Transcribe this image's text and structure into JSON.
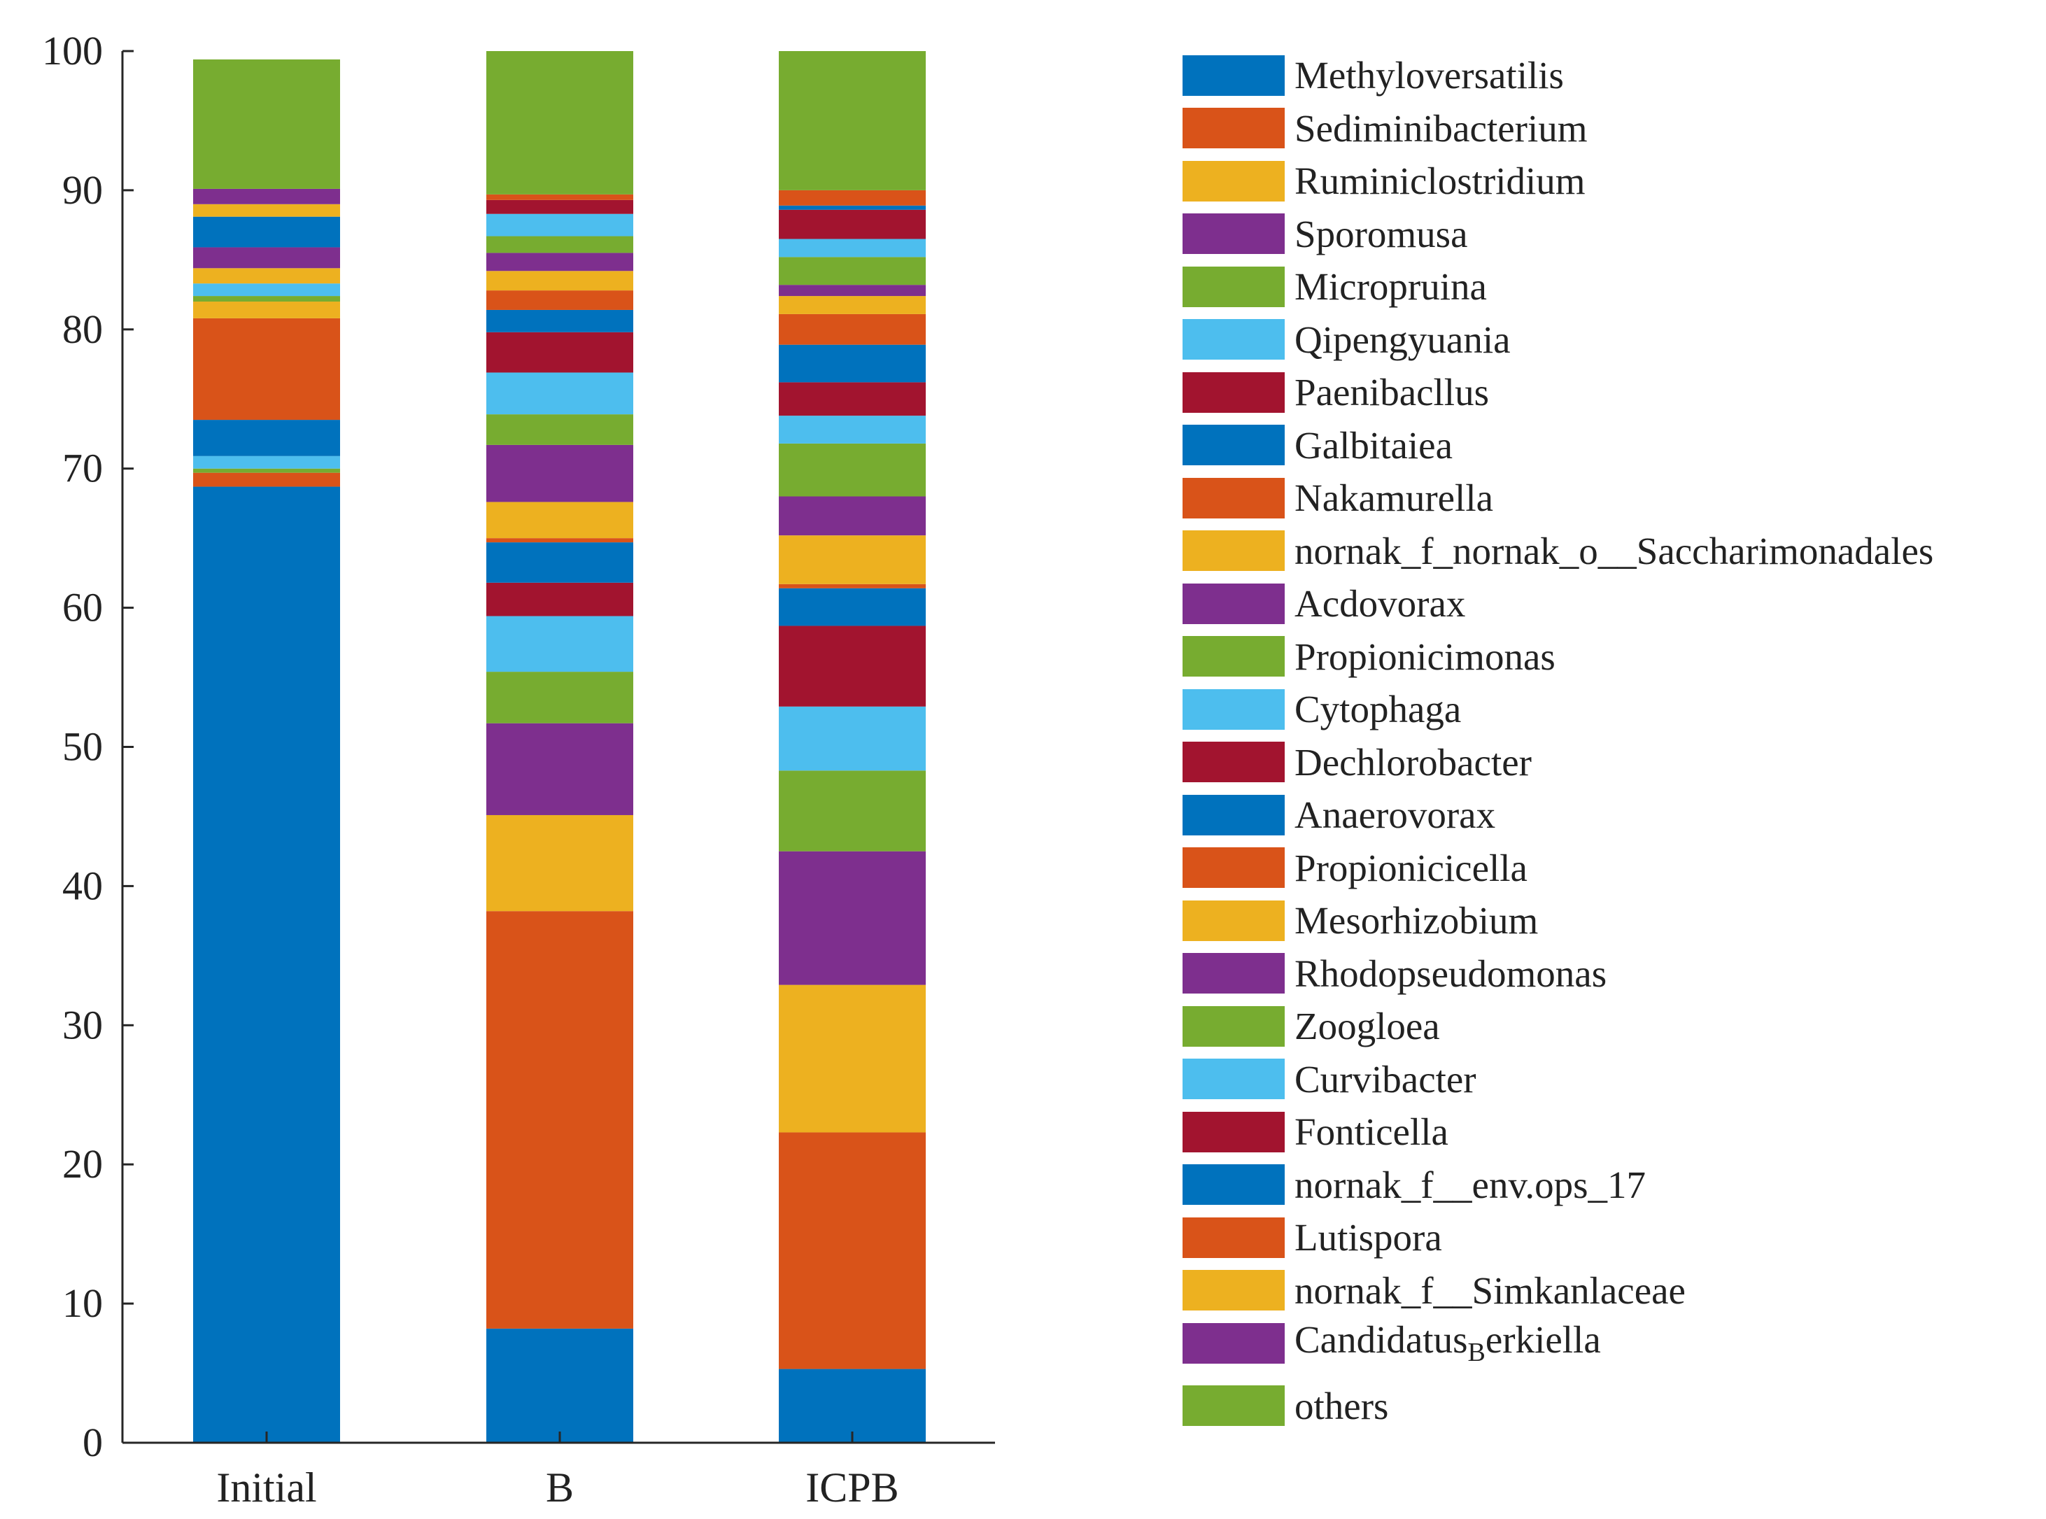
{
  "chart_data": {
    "type": "bar",
    "stacked": true,
    "title": "",
    "xlabel": "",
    "ylabel": "",
    "ylim": [
      0,
      100
    ],
    "yticks": [
      0,
      10,
      20,
      30,
      40,
      50,
      60,
      70,
      80,
      90,
      100
    ],
    "categories": [
      "Initial",
      "B",
      "ICPB"
    ],
    "legend_position": "right",
    "series": [
      {
        "name": "Methyloversatilis",
        "color": "#0072BD",
        "values": [
          68.7,
          8.2,
          5.3
        ]
      },
      {
        "name": "Sediminibacterium",
        "color": "#D95319",
        "values": [
          1.0,
          30.0,
          17.0
        ]
      },
      {
        "name": "Ruminiclostridium",
        "color": "#EDB120",
        "values": [
          0.0,
          6.9,
          10.6
        ]
      },
      {
        "name": "Sporomusa",
        "color": "#7E2F8E",
        "values": [
          0.0,
          6.6,
          9.6
        ]
      },
      {
        "name": "Micropruina",
        "color": "#77AC30",
        "values": [
          0.3,
          3.7,
          5.8
        ]
      },
      {
        "name": "Qipengyuania",
        "color": "#4DBEEE",
        "values": [
          0.9,
          4.0,
          4.6
        ]
      },
      {
        "name": "Paenibacllus",
        "color": "#A2142F",
        "values": [
          0.0,
          2.4,
          5.8
        ]
      },
      {
        "name": "Galbitaiea",
        "color": "#0072BD",
        "values": [
          2.6,
          2.9,
          2.7
        ]
      },
      {
        "name": "Nakamurella",
        "color": "#D95319",
        "values": [
          7.3,
          0.3,
          0.3
        ]
      },
      {
        "name": "nornak_f_nornak_o__Saccharimonadales",
        "color": "#EDB120",
        "values": [
          1.2,
          2.6,
          3.5
        ]
      },
      {
        "name": "Acdovorax",
        "color": "#7E2F8E",
        "values": [
          0.0,
          4.1,
          2.8
        ]
      },
      {
        "name": "Propionicimonas",
        "color": "#77AC30",
        "values": [
          0.4,
          2.2,
          3.8
        ]
      },
      {
        "name": "Cytophaga",
        "color": "#4DBEEE",
        "values": [
          0.9,
          3.0,
          2.0
        ]
      },
      {
        "name": "Dechlorobacter",
        "color": "#A2142F",
        "values": [
          0.0,
          2.9,
          2.4
        ]
      },
      {
        "name": "Anaerovorax",
        "color": "#0072BD",
        "values": [
          0.0,
          1.6,
          2.7
        ]
      },
      {
        "name": "Propionicicella",
        "color": "#D95319",
        "values": [
          0.0,
          1.4,
          2.2
        ]
      },
      {
        "name": "Mesorhizobium",
        "color": "#EDB120",
        "values": [
          1.1,
          1.4,
          1.3
        ]
      },
      {
        "name": "Rhodopseudomonas",
        "color": "#7E2F8E",
        "values": [
          1.5,
          1.3,
          0.8
        ]
      },
      {
        "name": "Zoogloea",
        "color": "#77AC30",
        "values": [
          0.0,
          1.2,
          2.0
        ]
      },
      {
        "name": "Curvibacter",
        "color": "#4DBEEE",
        "values": [
          0.0,
          1.6,
          1.3
        ]
      },
      {
        "name": "Fonticella",
        "color": "#A2142F",
        "values": [
          0.0,
          1.0,
          2.1
        ]
      },
      {
        "name": "nornak_f__env.ops_17",
        "color": "#0072BD",
        "values": [
          2.2,
          0.0,
          0.3
        ]
      },
      {
        "name": "Lutispora",
        "color": "#D95319",
        "values": [
          0.0,
          0.4,
          1.1
        ]
      },
      {
        "name": "nornak_f__Simkanlaceae",
        "color": "#EDB120",
        "values": [
          0.9,
          0.0,
          0.0
        ]
      },
      {
        "name": "Candidatus_Berkiella",
        "color": "#7E2F8E",
        "values": [
          1.1,
          0.0,
          0.0
        ]
      },
      {
        "name": "others",
        "color": "#77AC30",
        "values": [
          9.3,
          10.3,
          10.2
        ]
      }
    ]
  },
  "legend": {
    "items": [
      {
        "text": "Methyloversatilis"
      },
      {
        "text": "Sediminibacterium"
      },
      {
        "text": "Ruminiclostridium"
      },
      {
        "text": "Sporomusa"
      },
      {
        "text": "Micropruina"
      },
      {
        "text": "Qipengyuania"
      },
      {
        "text": "Paenibacllus"
      },
      {
        "text": "Galbitaiea"
      },
      {
        "text": "Nakamurella"
      },
      {
        "text": "nornak_f_nornak_o__Saccharimonadales"
      },
      {
        "text": "Acdovorax"
      },
      {
        "text": "Propionicimonas"
      },
      {
        "text": "Cytophaga"
      },
      {
        "text": "Dechlorobacter"
      },
      {
        "text": "Anaerovorax"
      },
      {
        "text": "Propionicicella"
      },
      {
        "text": "Mesorhizobium"
      },
      {
        "text": "Rhodopseudomonas"
      },
      {
        "text": "Zoogloea"
      },
      {
        "text": "Curvibacter"
      },
      {
        "text": "Fonticella"
      },
      {
        "text": "nornak_f__env.ops_17"
      },
      {
        "text": "Lutispora"
      },
      {
        "text": "nornak_f__Simkanlaceae"
      },
      {
        "text": "Candidatus",
        "sub": "B",
        "after": "erkiella"
      },
      {
        "text": "others"
      }
    ]
  }
}
